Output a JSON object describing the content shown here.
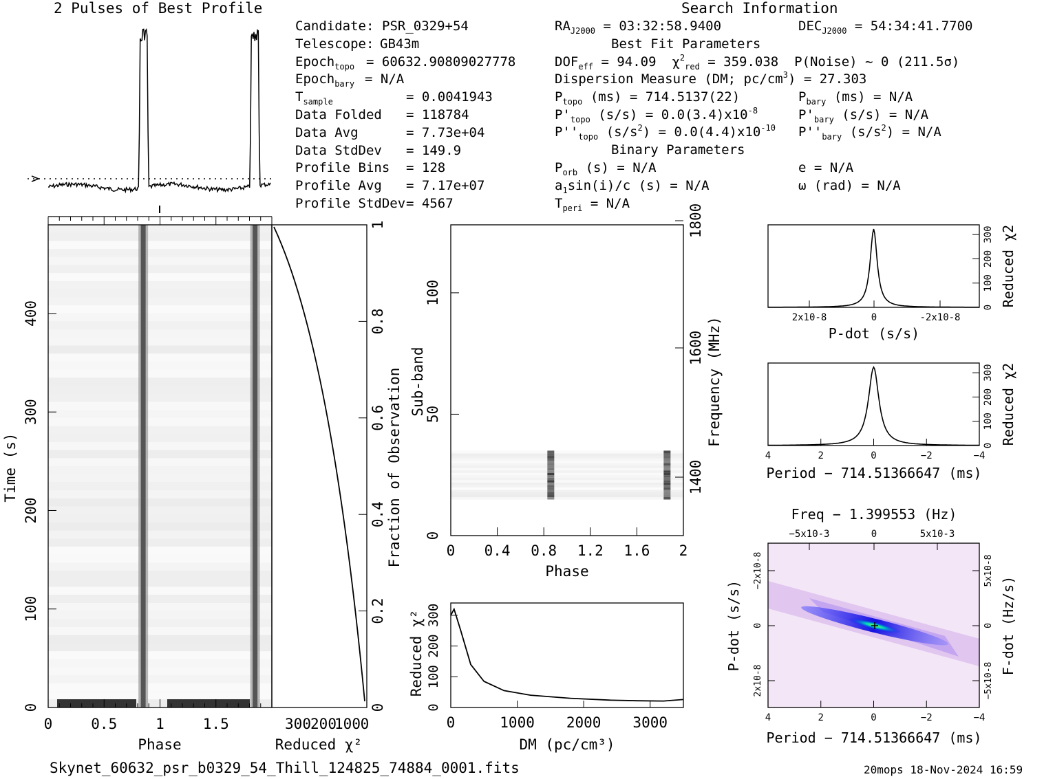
{
  "header": {
    "profile_title": "2 Pulses of Best Profile",
    "search_title": "Search Information"
  },
  "info_left": [
    {
      "label": "Candidate:",
      "value": "PSR_0329+54"
    },
    {
      "label": "Telescope:",
      "value": "GB43m"
    },
    {
      "label": "Epoch",
      "sub": "topo",
      "value": "= 60632.90809027778"
    },
    {
      "label": "Epoch",
      "sub": "bary",
      "value": "= N/A"
    },
    {
      "label": "T",
      "sub": "sample",
      "value": "=   0.0041943"
    },
    {
      "label": "Data Folded",
      "value": "=   118784"
    },
    {
      "label": "Data Avg",
      "value": "=   7.73e+04"
    },
    {
      "label": "Data StdDev",
      "value": "=   149.9"
    },
    {
      "label": "Profile Bins",
      "value": "=   128"
    },
    {
      "label": "Profile Avg",
      "value": "=   7.17e+07"
    },
    {
      "label": "Profile StdDev",
      "value": "=   4567"
    }
  ],
  "info_mid": {
    "ra": "RA",
    "ra_sub": "J2000",
    "ra_val": "= 03:32:58.9400",
    "best_fit": "Best Fit Parameters",
    "dof": "DOF",
    "dof_sub": "eff",
    "dof_val": "= 94.09",
    "chi": "χ",
    "chi_sup": "2",
    "chi_sub": "red",
    "chi_val": "= 359.038",
    "pnoise": "P(Noise) ~ 0   (211.5σ)",
    "dm_line": "Dispersion Measure (DM; pc/cm",
    "dm_sup": "3",
    "dm_val": ") = 27.303",
    "ptopo": "P",
    "ptopo_sub": "topo",
    "ptopo_val": "(ms) =  714.5137(22)",
    "pdtopo": "P'",
    "pdtopo_sub": "topo",
    "pdtopo_val": "(s/s) = 0.0(3.4)x10",
    "pdtopo_exp": "-8",
    "pddtopo": "P''",
    "pddtopo_sub": "topo",
    "pddtopo_val": "(s/s",
    "pddtopo_sup": "2",
    "pddtopo_val2": ") = 0.0(4.4)x10",
    "pddtopo_exp": "-10",
    "binary": "Binary Parameters",
    "porb": "P",
    "porb_sub": "orb",
    "porb_val": "(s) = N/A",
    "a1": "a",
    "a1_sub": "1",
    "a1_val": "sin(i)/c (s) = N/A",
    "tperi": "T",
    "tperi_sub": "peri",
    "tperi_val": "= N/A"
  },
  "info_right": {
    "dec": "DEC",
    "dec_sub": "J2000",
    "dec_val": "= 54:34:41.7700",
    "pbary": "P",
    "pbary_sub": "bary",
    "pbary_val": "(ms) = N/A",
    "pdbary": "P'",
    "pdbary_sub": "bary",
    "pdbary_val": "(s/s) = N/A",
    "pddbary": "P''",
    "pddbary_sub": "bary",
    "pddbary_val": "(s/s",
    "pddbary_sup": "2",
    "pddbary_val2": ") = N/A",
    "ecc": "e = N/A",
    "omega": "ω (rad) = N/A"
  },
  "footer": {
    "filename": "Skynet_60632_psr_b0329_54_Thill_124825_74884_0001.fits",
    "stamp": "20mops 18-Nov-2024 16:59"
  },
  "chart_data": [
    {
      "type": "line",
      "id": "pulse_profile",
      "title": "2 Pulses of Best Profile",
      "x_range": [
        0,
        2
      ],
      "pulse_phases": [
        0.85,
        1.85
      ]
    },
    {
      "type": "heatmap",
      "id": "time_phase",
      "xlabel": "Phase",
      "ylabel": "Time (s)",
      "xlim": [
        0,
        2
      ],
      "ylim": [
        0,
        490
      ],
      "x_ticks": [
        "0",
        "0.5",
        "1",
        "1.5"
      ],
      "y_ticks": [
        "0",
        "100",
        "200",
        "300",
        "400"
      ],
      "pulse_phases": [
        0.85,
        1.85
      ]
    },
    {
      "type": "line",
      "id": "time_chi2",
      "xlabel": "Reduced χ2",
      "x_ticks": [
        "300",
        "200",
        "100",
        "0"
      ],
      "right_label": "Fraction of Observation",
      "right_ticks": [
        "0",
        "0.2",
        "0.4",
        "0.6",
        "0.8",
        "1"
      ]
    },
    {
      "type": "heatmap",
      "id": "subband_phase",
      "xlabel": "Phase",
      "ylabel": "Sub-band",
      "x_ticks": [
        "0",
        "0.4",
        "0.8",
        "1.2",
        "1.6",
        "2"
      ],
      "y_ticks": [
        "0",
        "50",
        "100"
      ],
      "right_label": "Frequency (MHz)",
      "right_ticks": [
        "1400",
        "1600",
        "1800"
      ],
      "data_subbands": [
        15,
        35
      ]
    },
    {
      "type": "line",
      "id": "dm_chi2",
      "xlabel": "DM (pc/cm3)",
      "ylabel": "Reduced χ2",
      "x_ticks": [
        "0",
        "1000",
        "2000",
        "3000"
      ],
      "y_ticks": [
        "0",
        "100",
        "200",
        "300"
      ],
      "x": [
        0,
        50,
        150,
        300,
        500,
        800,
        1200,
        1800,
        2400,
        2800,
        3200,
        3500
      ],
      "y": [
        300,
        320,
        250,
        140,
        85,
        55,
        40,
        30,
        24,
        22,
        21,
        26
      ]
    },
    {
      "type": "line",
      "id": "pdot_chi2",
      "xlabel": "P-dot (s/s)",
      "ylabel": "Reduced χ2",
      "x_ticks": [
        "2x10-8",
        "0",
        "-2x10-8"
      ],
      "y_ticks": [
        "0",
        "100",
        "200",
        "300"
      ]
    },
    {
      "type": "line",
      "id": "period_chi2",
      "xlabel": "Period − 714.51366647 (ms)",
      "ylabel": "Reduced χ2",
      "x_ticks": [
        "4",
        "2",
        "0",
        "−2",
        "−4"
      ],
      "y_ticks": [
        "0",
        "100",
        "200",
        "300"
      ]
    },
    {
      "type": "heatmap",
      "id": "p_pdot",
      "top_label": "Freq − 1.399553 (Hz)",
      "top_ticks": [
        "−5x10-3",
        "0",
        "5x10-3"
      ],
      "xlabel": "Period − 714.51366647 (ms)",
      "x_ticks": [
        "4",
        "2",
        "0",
        "−2",
        "−4"
      ],
      "ylabel": "P-dot (s/s)",
      "y_ticks": [
        "−2x10-8",
        "0",
        "2x10-8"
      ],
      "right_label": "F-dot (Hz/s)",
      "right_ticks": [
        "5x10-8",
        "0",
        "−5x10-8"
      ]
    }
  ]
}
